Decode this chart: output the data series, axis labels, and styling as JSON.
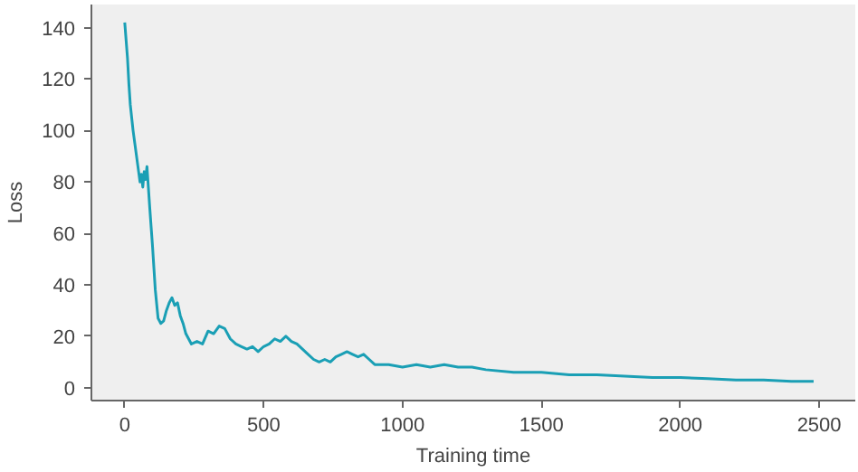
{
  "chart_data": {
    "type": "line",
    "xlabel": "Training time",
    "ylabel": "Loss",
    "xlim": [
      -120,
      2630
    ],
    "ylim": [
      -5,
      149
    ],
    "xticks": [
      0,
      500,
      1000,
      1500,
      2000,
      2500
    ],
    "yticks": [
      0,
      20,
      40,
      60,
      80,
      100,
      120,
      140
    ],
    "grid": false,
    "series": [
      {
        "color": "#1a9fb5",
        "x": [
          0,
          5,
          10,
          15,
          20,
          30,
          40,
          50,
          55,
          60,
          65,
          70,
          75,
          80,
          85,
          90,
          100,
          110,
          120,
          130,
          140,
          150,
          160,
          170,
          180,
          190,
          200,
          210,
          220,
          240,
          260,
          280,
          300,
          320,
          340,
          360,
          380,
          400,
          420,
          440,
          460,
          480,
          500,
          520,
          540,
          560,
          580,
          600,
          620,
          640,
          660,
          680,
          700,
          720,
          740,
          760,
          780,
          800,
          820,
          840,
          860,
          880,
          900,
          950,
          1000,
          1050,
          1100,
          1150,
          1200,
          1250,
          1300,
          1400,
          1500,
          1600,
          1700,
          1800,
          1900,
          2000,
          2100,
          2200,
          2300,
          2400,
          2480
        ],
        "values": [
          142,
          135,
          128,
          118,
          110,
          100,
          92,
          84,
          80,
          83,
          78,
          84,
          81,
          86,
          78,
          70,
          55,
          38,
          27,
          25,
          26,
          30,
          33,
          35,
          32,
          33,
          28,
          25,
          21,
          17,
          18,
          17,
          22,
          21,
          24,
          23,
          19,
          17,
          16,
          15,
          16,
          14,
          16,
          17,
          19,
          18,
          20,
          18,
          17,
          15,
          13,
          11,
          10,
          11,
          10,
          12,
          13,
          14,
          13,
          12,
          13,
          11,
          9,
          9,
          8,
          9,
          8,
          9,
          8,
          8,
          7,
          6,
          6,
          5,
          5,
          4.5,
          4,
          4,
          3.5,
          3,
          3,
          2.5,
          2.5
        ]
      }
    ]
  }
}
